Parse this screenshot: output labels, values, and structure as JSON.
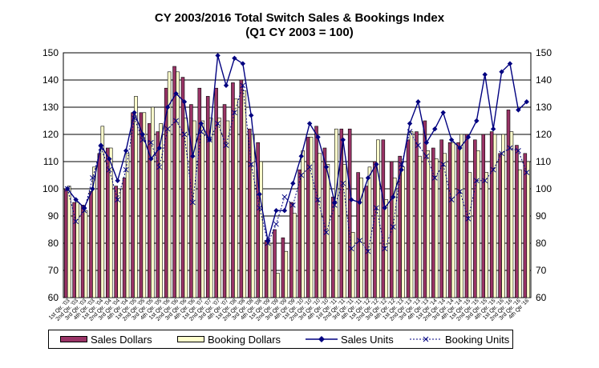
{
  "chart_data": {
    "type": "bar",
    "title": "CY 2003/2016 Total Switch Sales & Bookings Index",
    "subtitle": "(Q1 CY 2003 = 100)",
    "xlabel": "",
    "ylabel": "",
    "ylim": [
      60,
      150
    ],
    "yticks": [
      60,
      70,
      80,
      90,
      100,
      110,
      120,
      130,
      140,
      150
    ],
    "grid": true,
    "legend_position": "bottom",
    "categories": [
      "1st Qtr. '03",
      "2nd Qtr. '03",
      "3rd Qtr. '03",
      "4th Qtr. '03",
      "1st Qtr. '04",
      "2nd Qtr. '04",
      "3rd Qtr. '04",
      "4th Qtr. '04",
      "1st Qtr. '05",
      "2nd Qtr. '05",
      "3rd Qtr. '05",
      "4th Qtr. '05",
      "1st Qtr. '06",
      "2nd Qtr. '06",
      "3rd Qtr. '06",
      "4th Qtr. '06",
      "1st Qtr. '07",
      "2nd Qtr. '07",
      "3rd Qtr. '07",
      "4th Qtr. '07",
      "1st Qtr. '08",
      "2nd Qtr. '08",
      "3rd Qtr. '08",
      "4th Qtr. '08",
      "1st Qtr. '09",
      "2nd Qtr. '09",
      "3rd Qtr. '09",
      "4th Qtr. '09",
      "1st Qtr. '10",
      "2nd Qtr. '10",
      "3rd Qtr. '10",
      "4th Qtr. '10",
      "1st Qtr. '11",
      "2nd Qtr. '11",
      "3rd Qtr. '11",
      "4th Qtr. '11",
      "1st Qtr. '12",
      "2nd Qtr. '12",
      "3rd Qtr. '12",
      "4th Qtr. '12",
      "1st Qtr. '13",
      "2nd Qtr. '13",
      "3rd Qtr. '13",
      "4th Qtr. '13",
      "1st Qtr. '14",
      "2nd Qtr. '14",
      "3rd Qtr. '14",
      "4th Qtr. '14",
      "1st Qtr. '15",
      "2nd Qtr. '15",
      "3rd Qtr. '15",
      "4th Qtr. '15",
      "1st Qtr. '16",
      "2nd Qtr. '16",
      "3rd Qtr. '16",
      "4th Qtr '16"
    ],
    "series": [
      {
        "name": "Sales Dollars",
        "type": "bar",
        "color": "#993366",
        "values": [
          100,
          95,
          94,
          99,
          113,
          115,
          101,
          104,
          128,
          128,
          124,
          121,
          137,
          145,
          141,
          131,
          137,
          134,
          137,
          131,
          139,
          140,
          122,
          117,
          81,
          85,
          82,
          95,
          107,
          119,
          123,
          115,
          97,
          122,
          122,
          106,
          101,
          110,
          118,
          110,
          112,
          118,
          121,
          125,
          115,
          118,
          117,
          117,
          120,
          118,
          120,
          121,
          113,
          129,
          116,
          113
        ]
      },
      {
        "name": "Booking Dollars",
        "type": "bar",
        "color": "#FFFFCC",
        "values": [
          101,
          95,
          92,
          108,
          123,
          115,
          100,
          113,
          134,
          128,
          130,
          124,
          143,
          143,
          126,
          125,
          125,
          126,
          126,
          125,
          133,
          136,
          120,
          110,
          80,
          69,
          77,
          91,
          114,
          119,
          113,
          109,
          122,
          109,
          84,
          104,
          108,
          118,
          96,
          104,
          108,
          121,
          112,
          114,
          111,
          113,
          117,
          120,
          106,
          114,
          106,
          120,
          120,
          121,
          107,
          110
        ]
      },
      {
        "name": "Sales Units",
        "type": "line",
        "color": "#000080",
        "values": [
          100,
          96,
          93,
          100,
          116,
          111,
          103,
          114,
          128,
          120,
          111,
          115,
          130,
          135,
          132,
          112,
          124,
          118,
          149,
          138,
          148,
          146,
          127,
          98,
          81,
          92,
          92,
          102,
          112,
          124,
          119,
          108,
          95,
          118,
          96,
          95,
          104,
          109,
          93,
          97,
          107,
          124,
          132,
          117,
          122,
          128,
          118,
          115,
          119,
          125,
          142,
          122,
          143,
          146,
          129,
          132
        ]
      },
      {
        "name": "Booking Units",
        "type": "line",
        "color": "#000080",
        "values": [
          100,
          88,
          92,
          104,
          115,
          107,
          96,
          107,
          126,
          118,
          117,
          108,
          122,
          125,
          120,
          95,
          121,
          118,
          124,
          116,
          128,
          138,
          109,
          93,
          80,
          87,
          97,
          94,
          105,
          108,
          96,
          84,
          94,
          102,
          78,
          81,
          77,
          93,
          78,
          86,
          109,
          121,
          116,
          112,
          104,
          109,
          96,
          99,
          89,
          103,
          103,
          107,
          113,
          115,
          114,
          106
        ]
      }
    ],
    "axes": {
      "left_ticks": [
        "60",
        "70",
        "80",
        "90",
        "100",
        "110",
        "120",
        "130",
        "140",
        "150"
      ],
      "right_ticks": [
        "60",
        "70",
        "80",
        "90",
        "100",
        "110",
        "120",
        "130",
        "140",
        "150"
      ]
    }
  }
}
